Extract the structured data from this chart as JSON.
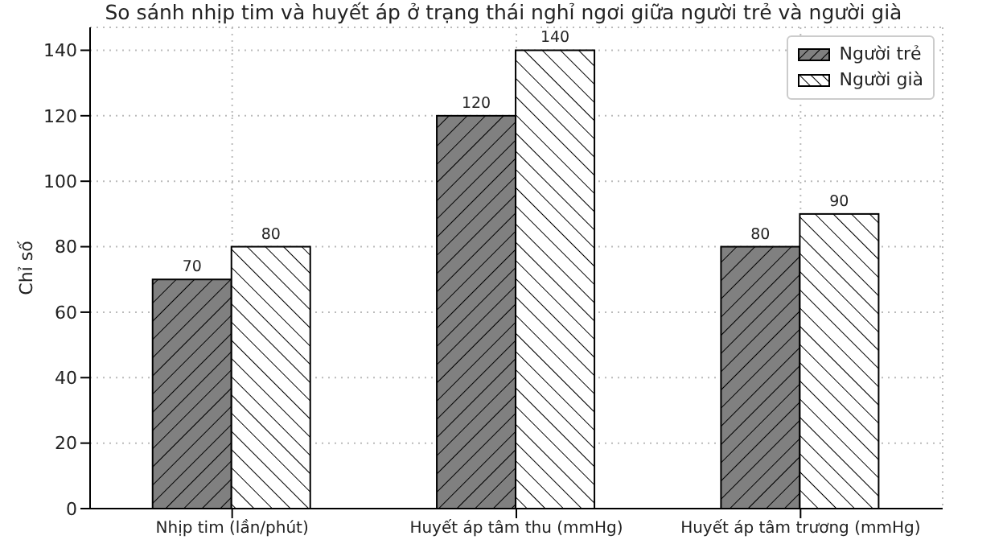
{
  "chart_data": {
    "type": "bar",
    "title": "So sánh nhịp tim và huyết áp ở trạng thái nghỉ ngơi giữa người trẻ và người già",
    "ylabel": "Chỉ số",
    "categories": [
      "Nhịp tim (lần/phút)",
      "Huyết áp tâm thu (mmHg)",
      "Huyết áp tâm trương (mmHg)"
    ],
    "series": [
      {
        "name": "Người trẻ",
        "color": "#808080",
        "values": [
          70,
          120,
          80
        ]
      },
      {
        "name": "Người già",
        "color": "#ffffff",
        "values": [
          80,
          140,
          90
        ]
      }
    ],
    "ylim": [
      0,
      147
    ],
    "yticks": [
      0,
      20,
      40,
      60,
      80,
      100,
      120,
      140
    ],
    "grid": true,
    "legend": "top right",
    "data_labels": true
  }
}
